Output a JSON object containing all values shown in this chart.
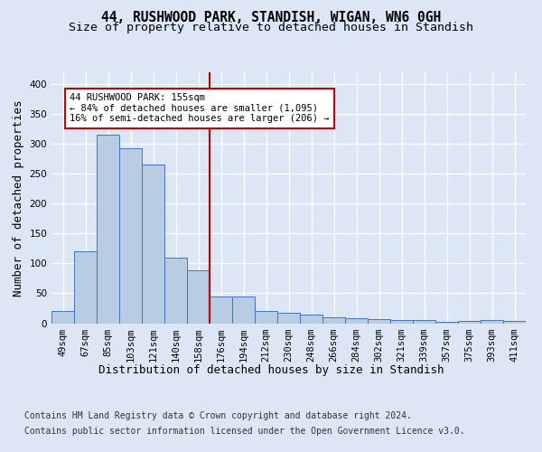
{
  "title": "44, RUSHWOOD PARK, STANDISH, WIGAN, WN6 0GH",
  "subtitle": "Size of property relative to detached houses in Standish",
  "xlabel": "Distribution of detached houses by size in Standish",
  "ylabel": "Number of detached properties",
  "categories": [
    "49sqm",
    "67sqm",
    "85sqm",
    "103sqm",
    "121sqm",
    "140sqm",
    "158sqm",
    "176sqm",
    "194sqm",
    "212sqm",
    "230sqm",
    "248sqm",
    "266sqm",
    "284sqm",
    "302sqm",
    "321sqm",
    "339sqm",
    "357sqm",
    "375sqm",
    "393sqm",
    "411sqm"
  ],
  "values": [
    20,
    120,
    315,
    293,
    265,
    110,
    88,
    45,
    44,
    20,
    18,
    15,
    10,
    8,
    7,
    6,
    6,
    3,
    4,
    6,
    4
  ],
  "bar_color": "#b8cce4",
  "bar_edge_color": "#4472c4",
  "vline_index": 6,
  "vline_color": "#cc0000",
  "annotation_text": "44 RUSHWOOD PARK: 155sqm\n← 84% of detached houses are smaller (1,095)\n16% of semi-detached houses are larger (206) →",
  "annotation_box_color": "white",
  "annotation_box_edge_color": "#cc0000",
  "ylim": [
    0,
    420
  ],
  "yticks": [
    0,
    50,
    100,
    150,
    200,
    250,
    300,
    350,
    400
  ],
  "footer_line1": "Contains HM Land Registry data © Crown copyright and database right 2024.",
  "footer_line2": "Contains public sector information licensed under the Open Government Licence v3.0.",
  "background_color": "#dce6f5",
  "plot_background_color": "#dce6f5",
  "grid_color": "white",
  "title_fontsize": 10.5,
  "subtitle_fontsize": 9.5,
  "axis_label_fontsize": 9,
  "tick_fontsize": 7.5,
  "annotation_fontsize": 7.5,
  "footer_fontsize": 7
}
